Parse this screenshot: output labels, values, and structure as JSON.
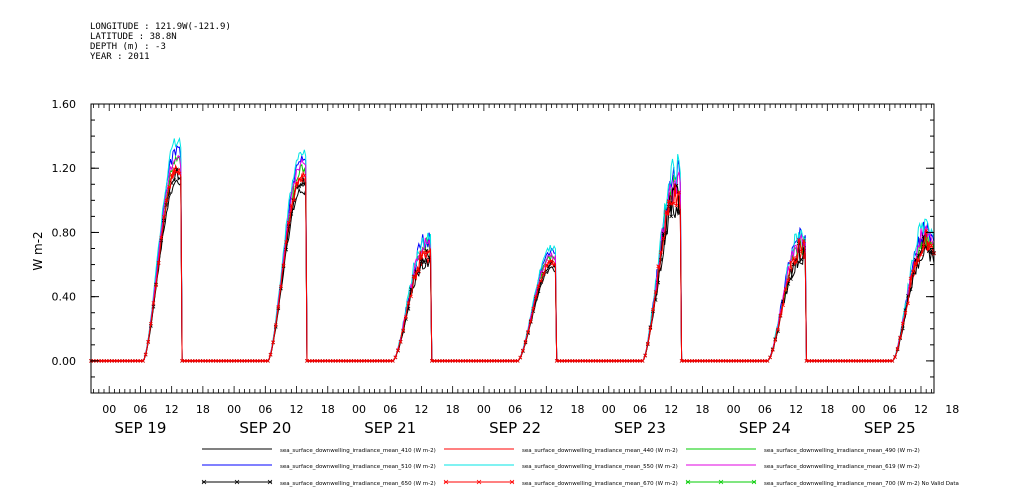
{
  "header": {
    "longitude": "LONGITUDE : 121.9W(-121.9)",
    "latitude": "LATITUDE : 38.8N",
    "depth": "DEPTH (m) : -3",
    "year": "YEAR : 2011"
  },
  "chart_data": {
    "type": "line",
    "ylabel": "W m-2",
    "ylim": [
      -0.2,
      1.6
    ],
    "yticks": [
      "0.00",
      "0.40",
      "0.80",
      "1.20",
      "1.60"
    ],
    "ytick_values": [
      0.0,
      0.4,
      0.8,
      1.2,
      1.6
    ],
    "xlim_hours": [
      2.5,
      164.5
    ],
    "x_hour_labels": [
      "00",
      "06",
      "12",
      "18",
      "00",
      "06",
      "12",
      "18",
      "00",
      "06",
      "12",
      "18",
      "00",
      "06",
      "12",
      "18",
      "00",
      "06",
      "12",
      "18",
      "00",
      "06",
      "12",
      "18",
      "00",
      "06",
      "12",
      "18"
    ],
    "x_hour_positions": [
      6,
      12,
      18,
      24,
      30,
      36,
      42,
      48,
      54,
      60,
      66,
      72,
      78,
      84,
      90,
      96,
      102,
      108,
      114,
      120,
      126,
      132,
      138,
      144,
      150,
      156,
      162,
      168
    ],
    "x_day_labels": [
      "SEP 19",
      "SEP 20",
      "SEP 21",
      "SEP 22",
      "SEP 23",
      "SEP 24",
      "SEP 25"
    ],
    "x_day_positions": [
      12,
      36,
      60,
      84,
      108,
      132,
      156
    ],
    "grid": false,
    "legend_placement": "bottom",
    "time_origin_note": "",
    "daily_peaks": [
      1.2,
      1.15,
      0.68,
      0.62,
      1.05,
      0.7,
      0.75
    ],
    "series": [
      {
        "name": "sea_surface_downwelling_irradiance_mean_410 (W m-2)",
        "color": "#000000",
        "marker": false,
        "scale": 0.93
      },
      {
        "name": "sea_surface_downwelling_irradiance_mean_440 (W m-2)",
        "color": "#ff0000",
        "marker": false,
        "scale": 0.99
      },
      {
        "name": "sea_surface_downwelling_irradiance_mean_490 (W m-2)",
        "color": "#00cc00",
        "marker": false,
        "scale": 1.04
      },
      {
        "name": "sea_surface_downwelling_irradiance_mean_510 (W m-2)",
        "color": "#0000ff",
        "marker": false,
        "scale": 1.1
      },
      {
        "name": "sea_surface_downwelling_irradiance_mean_550 (W m-2)",
        "color": "#00e5e5",
        "marker": false,
        "scale": 1.14
      },
      {
        "name": "sea_surface_downwelling_irradiance_mean_619 (W m-2)",
        "color": "#e000e0",
        "marker": false,
        "scale": 1.06
      },
      {
        "name": "sea_surface_downwelling_irradiance_mean_650 (W m-2)",
        "color": "#000000",
        "marker": true,
        "scale": 0.97
      },
      {
        "name": "sea_surface_downwelling_irradiance_mean_670 (W m-2)",
        "color": "#ff0000",
        "marker": true,
        "scale": 1.0
      },
      {
        "name": "sea_surface_downwelling_irradiance_mean_700 (W m-2) No Valid Data",
        "color": "#00cc00",
        "marker": true,
        "scale": 0
      }
    ]
  }
}
